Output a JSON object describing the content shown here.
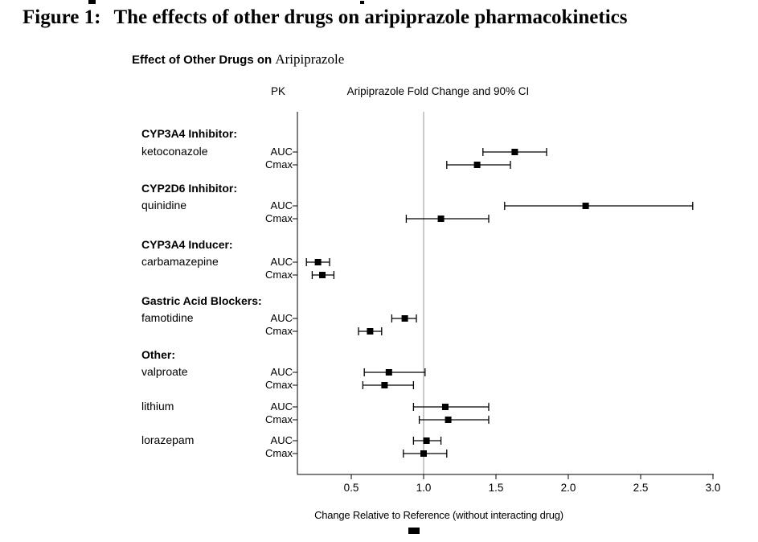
{
  "figure": {
    "label": "Figure 1:",
    "title": "The effects of other drugs on aripiprazole pharmacokinetics"
  },
  "chart_data": {
    "type": "forest",
    "title": "Effect of Other Drugs on",
    "title_drug": "Aripiprazole",
    "col_pk": "PK",
    "col_ci": "Aripiprazole Fold Change and 90% CI",
    "xlabel": "Change Relative to Reference (without interacting drug)",
    "ref_line": 1.0,
    "xticks": [
      0.5,
      1.0,
      1.5,
      2.0,
      2.5,
      3.0
    ],
    "xlim": [
      0.13,
      3.01
    ],
    "marker": "square",
    "grid": false,
    "groups": [
      {
        "header": "CYP3A4 Inhibitor:",
        "drug": "ketoconazole",
        "rows": [
          {
            "pk": "AUC",
            "est": 1.63,
            "lo": 1.41,
            "hi": 1.85
          },
          {
            "pk": "Cmax",
            "est": 1.37,
            "lo": 1.16,
            "hi": 1.6
          }
        ]
      },
      {
        "header": "CYP2D6 Inhibitor:",
        "drug": "quinidine",
        "rows": [
          {
            "pk": "AUC",
            "est": 2.12,
            "lo": 1.56,
            "hi": 2.86
          },
          {
            "pk": "Cmax",
            "est": 1.12,
            "lo": 0.88,
            "hi": 1.45
          }
        ]
      },
      {
        "header": "CYP3A4 Inducer:",
        "drug": "carbamazepine",
        "rows": [
          {
            "pk": "AUC",
            "est": 0.27,
            "lo": 0.19,
            "hi": 0.35
          },
          {
            "pk": "Cmax",
            "est": 0.3,
            "lo": 0.23,
            "hi": 0.38
          }
        ]
      },
      {
        "header": "Gastric Acid Blockers:",
        "drug": "famotidine",
        "rows": [
          {
            "pk": "AUC",
            "est": 0.87,
            "lo": 0.78,
            "hi": 0.95
          },
          {
            "pk": "Cmax",
            "est": 0.63,
            "lo": 0.55,
            "hi": 0.71
          }
        ]
      },
      {
        "header": "Other:",
        "drug": "valproate",
        "rows": [
          {
            "pk": "AUC",
            "est": 0.76,
            "lo": 0.59,
            "hi": 1.01
          },
          {
            "pk": "Cmax",
            "est": 0.73,
            "lo": 0.58,
            "hi": 0.93
          }
        ]
      },
      {
        "header": "",
        "drug": "lithium",
        "rows": [
          {
            "pk": "AUC",
            "est": 1.15,
            "lo": 0.93,
            "hi": 1.45
          },
          {
            "pk": "Cmax",
            "est": 1.17,
            "lo": 0.97,
            "hi": 1.45
          }
        ]
      },
      {
        "header": "",
        "drug": "lorazepam",
        "rows": [
          {
            "pk": "AUC",
            "est": 1.02,
            "lo": 0.93,
            "hi": 1.12
          },
          {
            "pk": "Cmax",
            "est": 1.0,
            "lo": 0.86,
            "hi": 1.16
          }
        ]
      }
    ]
  }
}
